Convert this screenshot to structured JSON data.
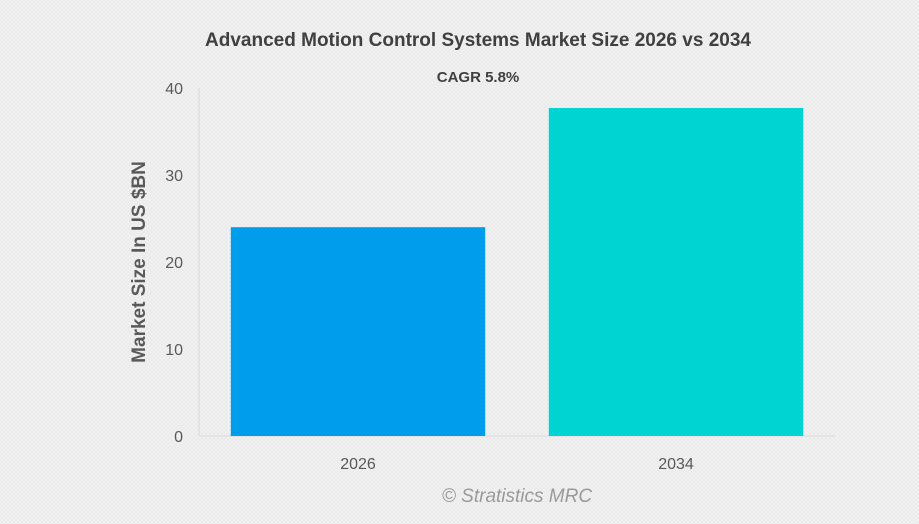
{
  "chart_data": {
    "type": "bar",
    "title": "Advanced Motion Control Systems Market Size 2026 vs 2034",
    "subtitle": "CAGR 5.8%",
    "xlabel": "",
    "ylabel": "Market Size In US $BN",
    "categories": [
      "2026",
      "2034"
    ],
    "values": [
      24.0,
      37.7
    ],
    "bar_colors": [
      "#019ded",
      "#00d4d2"
    ],
    "ylim": [
      0,
      40
    ],
    "yticks": [
      "0",
      "10",
      "20",
      "30",
      "40"
    ],
    "grid": false,
    "legend": "none"
  },
  "footer": {
    "credit": "© Stratistics MRC"
  }
}
